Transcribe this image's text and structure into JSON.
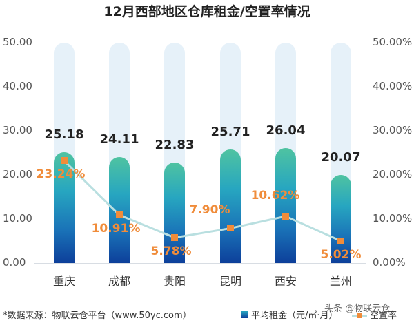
{
  "chart_data": {
    "type": "bar",
    "title": "12月西部地区仓库租金/空置率情况",
    "categories": [
      "重庆",
      "成都",
      "贵阳",
      "昆明",
      "西安",
      "兰州"
    ],
    "series": [
      {
        "name": "平均租金（元/㎡·月）",
        "type": "bar",
        "axis": "left",
        "values": [
          25.18,
          24.11,
          22.83,
          25.71,
          26.04,
          20.07
        ],
        "labels": [
          "25.18",
          "24.11",
          "22.83",
          "25.71",
          "26.04",
          "20.07"
        ]
      },
      {
        "name": "空置率",
        "type": "line",
        "axis": "right",
        "values": [
          23.24,
          10.91,
          5.78,
          7.9,
          10.62,
          5.02
        ],
        "labels": [
          "23.24%",
          "10.91%",
          "5.78%",
          "7.90%",
          "10.62%",
          "5.02%"
        ]
      }
    ],
    "left_axis": {
      "ylim": [
        0,
        50
      ],
      "ticks": [
        "0.00",
        "10.00",
        "20.00",
        "30.00",
        "40.00",
        "50.00"
      ]
    },
    "right_axis": {
      "ylim": [
        0,
        50
      ],
      "ticks": [
        "0.00%",
        "10.00%",
        "20.00%",
        "30.00%",
        "40.00%",
        "50.00%"
      ]
    },
    "grid": false,
    "legend_position": "bottom-right",
    "colors": {
      "bar_top": "#4fc3a1",
      "bar_bottom": "#0d3f9a",
      "bar_bg": "#e6f1f9",
      "line": "#b9dfe0",
      "marker": "#f08c3a",
      "pct_label": "#f08c3a"
    }
  },
  "footer": {
    "source": "*数据来源：物联云仓平台（www.50yc.com）",
    "legend_bar": "平均租金（元/㎡·月）",
    "legend_line": "空置率",
    "watermark": "头条 @物联云仓"
  }
}
